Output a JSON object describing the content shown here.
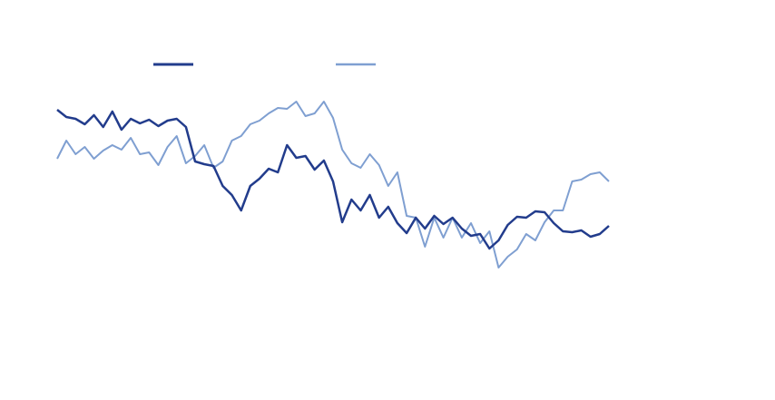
{
  "chart_data": {
    "type": "line",
    "ylim": [
      0,
      441
    ],
    "legend": "top",
    "series": [
      {
        "color": "#223c8c",
        "values": [
          320,
          312,
          310,
          304,
          314,
          301,
          318,
          298,
          310,
          305,
          309,
          302,
          308,
          310,
          301,
          263,
          260,
          258,
          236,
          226,
          209,
          236,
          244,
          255,
          251,
          281,
          267,
          269,
          254,
          264,
          241,
          196,
          221,
          209,
          226,
          201,
          213,
          195,
          184,
          201,
          189,
          203,
          194,
          201,
          189,
          181,
          183,
          167,
          176,
          193,
          202,
          201,
          208,
          207,
          195,
          186,
          185,
          187,
          180,
          183,
          192
        ]
      },
      {
        "color": "#7f9fd1",
        "values": [
          266,
          286,
          271,
          279,
          266,
          275,
          281,
          276,
          289,
          271,
          273,
          259,
          279,
          291,
          261,
          269,
          281,
          256,
          263,
          286,
          291,
          304,
          308,
          316,
          322,
          321,
          329,
          313,
          316,
          329,
          311,
          276,
          261,
          256,
          271,
          259,
          236,
          251,
          203,
          201,
          169,
          201,
          179,
          201,
          179,
          195,
          173,
          186,
          146,
          158,
          166,
          183,
          176,
          196,
          209,
          209,
          241,
          243,
          249,
          251,
          241
        ]
      }
    ]
  }
}
